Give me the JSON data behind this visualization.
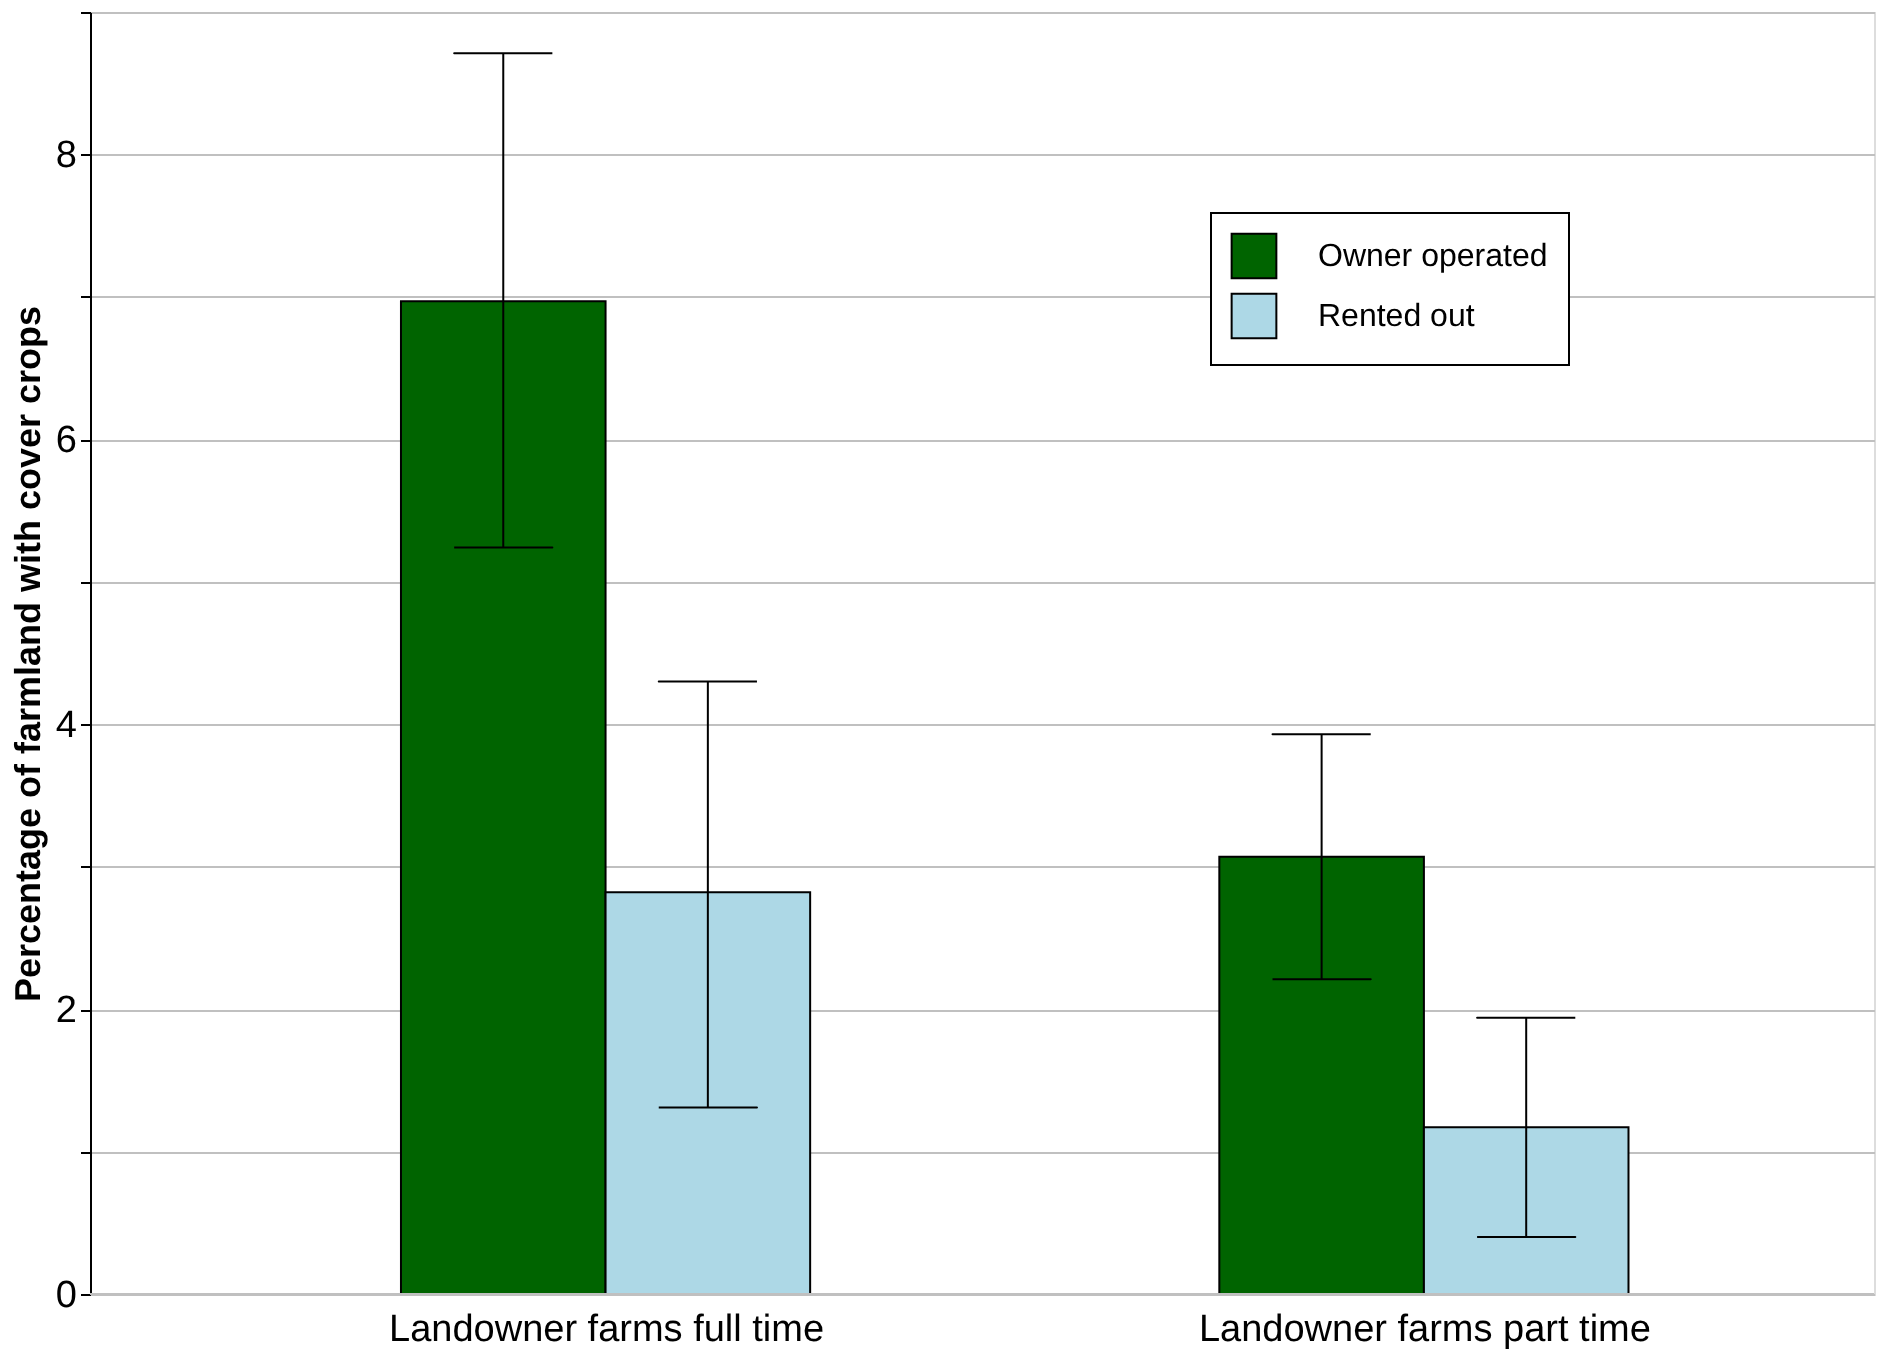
{
  "chart_data": {
    "type": "bar",
    "ylabel": "Percentage of farmland with cover crops",
    "categories": [
      "Landowner farms full time",
      "Landowner farms part time"
    ],
    "series": [
      {
        "name": "Owner operated",
        "color": "#006400",
        "values": [
          6.97,
          3.07
        ],
        "errors": [
          [
            5.24,
            8.71
          ],
          [
            2.21,
            3.93
          ]
        ]
      },
      {
        "name": "Rented out",
        "color": "#add8e6",
        "values": [
          2.82,
          1.17
        ],
        "errors": [
          [
            1.31,
            4.3
          ],
          [
            0.4,
            1.94
          ]
        ]
      }
    ],
    "ylim": [
      0,
      9
    ],
    "yticks": [
      0,
      {
        "value": 1,
        "label": null
      },
      2,
      {
        "value": 3,
        "label": null
      },
      4,
      {
        "value": 5,
        "label": null
      },
      6,
      {
        "value": 7,
        "label": null
      },
      8,
      {
        "value": 9,
        "label": null
      }
    ],
    "grid": "y",
    "legend": "top right"
  }
}
